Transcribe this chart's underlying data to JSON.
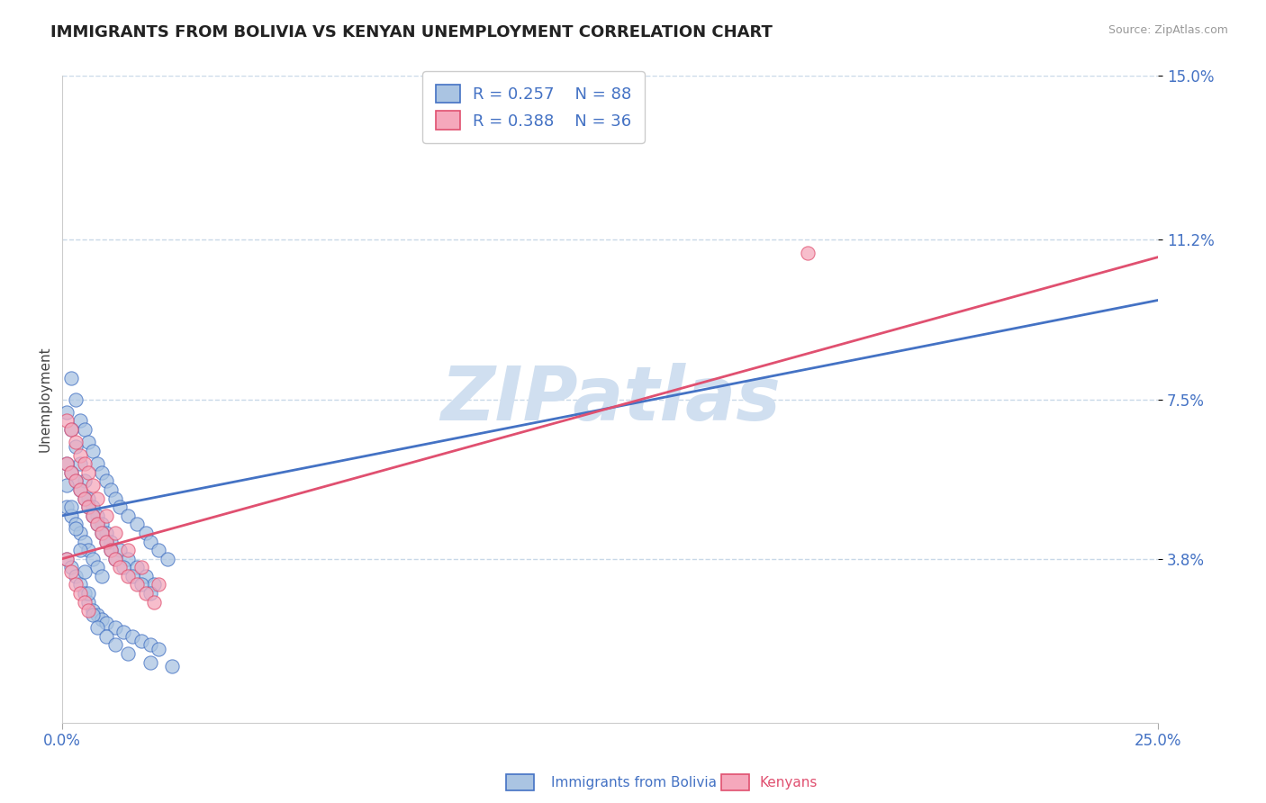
{
  "title": "IMMIGRANTS FROM BOLIVIA VS KENYAN UNEMPLOYMENT CORRELATION CHART",
  "source": "Source: ZipAtlas.com",
  "ylabel": "Unemployment",
  "x_min": 0.0,
  "x_max": 0.25,
  "y_min": 0.0,
  "y_max": 0.15,
  "x_ticks": [
    0.0,
    0.25
  ],
  "x_tick_labels": [
    "0.0%",
    "25.0%"
  ],
  "y_ticks": [
    0.038,
    0.075,
    0.112,
    0.15
  ],
  "y_tick_labels": [
    "3.8%",
    "7.5%",
    "11.2%",
    "15.0%"
  ],
  "series1_label": "Immigrants from Bolivia",
  "series2_label": "Kenyans",
  "series1_color": "#aac4e2",
  "series2_color": "#f5a8bc",
  "trend1_color": "#4472c4",
  "trend2_color": "#e05070",
  "watermark": "ZIPatlas",
  "watermark_color": "#d0dff0",
  "background_color": "#ffffff",
  "grid_color": "#c8d8e8",
  "title_color": "#222222",
  "tick_label_color": "#4472c4",
  "legend_text_color": "#4472c4",
  "bolivia_x": [
    0.002,
    0.003,
    0.004,
    0.005,
    0.006,
    0.007,
    0.008,
    0.009,
    0.01,
    0.011,
    0.012,
    0.013,
    0.015,
    0.017,
    0.019,
    0.02,
    0.022,
    0.024,
    0.001,
    0.002,
    0.003,
    0.004,
    0.005,
    0.006,
    0.007,
    0.008,
    0.009,
    0.01,
    0.011,
    0.013,
    0.015,
    0.017,
    0.019,
    0.021,
    0.001,
    0.002,
    0.003,
    0.004,
    0.005,
    0.006,
    0.007,
    0.008,
    0.009,
    0.01,
    0.011,
    0.012,
    0.014,
    0.016,
    0.018,
    0.02,
    0.001,
    0.002,
    0.003,
    0.004,
    0.005,
    0.006,
    0.007,
    0.008,
    0.009,
    0.001,
    0.002,
    0.003,
    0.004,
    0.005,
    0.006,
    0.007,
    0.008,
    0.009,
    0.01,
    0.012,
    0.014,
    0.016,
    0.018,
    0.02,
    0.022,
    0.001,
    0.002,
    0.003,
    0.004,
    0.005,
    0.006,
    0.007,
    0.008,
    0.01,
    0.012,
    0.015,
    0.02,
    0.025
  ],
  "bolivia_y": [
    0.08,
    0.075,
    0.07,
    0.068,
    0.065,
    0.063,
    0.06,
    0.058,
    0.056,
    0.054,
    0.052,
    0.05,
    0.048,
    0.046,
    0.044,
    0.042,
    0.04,
    0.038,
    0.072,
    0.068,
    0.064,
    0.06,
    0.056,
    0.052,
    0.05,
    0.048,
    0.046,
    0.044,
    0.042,
    0.04,
    0.038,
    0.036,
    0.034,
    0.032,
    0.06,
    0.058,
    0.056,
    0.054,
    0.052,
    0.05,
    0.048,
    0.046,
    0.044,
    0.042,
    0.04,
    0.038,
    0.036,
    0.034,
    0.032,
    0.03,
    0.05,
    0.048,
    0.046,
    0.044,
    0.042,
    0.04,
    0.038,
    0.036,
    0.034,
    0.038,
    0.036,
    0.034,
    0.032,
    0.03,
    0.028,
    0.026,
    0.025,
    0.024,
    0.023,
    0.022,
    0.021,
    0.02,
    0.019,
    0.018,
    0.017,
    0.055,
    0.05,
    0.045,
    0.04,
    0.035,
    0.03,
    0.025,
    0.022,
    0.02,
    0.018,
    0.016,
    0.014,
    0.013
  ],
  "kenya_x": [
    0.001,
    0.002,
    0.003,
    0.004,
    0.005,
    0.006,
    0.007,
    0.008,
    0.009,
    0.01,
    0.011,
    0.012,
    0.013,
    0.015,
    0.017,
    0.019,
    0.021,
    0.001,
    0.002,
    0.003,
    0.004,
    0.005,
    0.006,
    0.007,
    0.008,
    0.01,
    0.012,
    0.015,
    0.018,
    0.022,
    0.001,
    0.002,
    0.003,
    0.004,
    0.005,
    0.006,
    0.17
  ],
  "kenya_y": [
    0.06,
    0.058,
    0.056,
    0.054,
    0.052,
    0.05,
    0.048,
    0.046,
    0.044,
    0.042,
    0.04,
    0.038,
    0.036,
    0.034,
    0.032,
    0.03,
    0.028,
    0.07,
    0.068,
    0.065,
    0.062,
    0.06,
    0.058,
    0.055,
    0.052,
    0.048,
    0.044,
    0.04,
    0.036,
    0.032,
    0.038,
    0.035,
    0.032,
    0.03,
    0.028,
    0.026,
    0.109
  ],
  "trend1_intercept": 0.048,
  "trend1_slope": 0.2,
  "trend2_intercept": 0.038,
  "trend2_slope": 0.28
}
